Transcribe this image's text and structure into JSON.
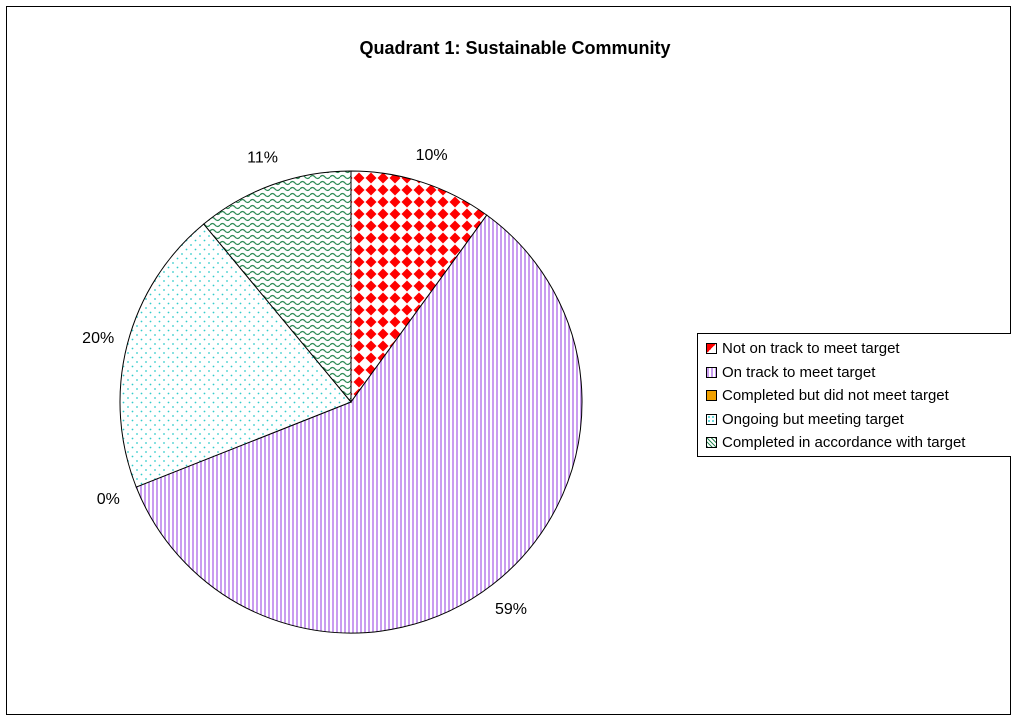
{
  "chart_data": {
    "type": "pie",
    "title": "Quadrant 1: Sustainable Community",
    "start_angle_deg": 0,
    "direction": "clockwise",
    "slices": [
      {
        "label": "Not on track to meet target",
        "value": 10,
        "percent_label": "10%",
        "pattern": "red-diamond-check",
        "color": "#ff0000"
      },
      {
        "label": "On track to meet target",
        "value": 59,
        "percent_label": "59%",
        "pattern": "violet-vertical-lines",
        "color": "#c99cf0"
      },
      {
        "label": "Completed but did not meet target",
        "value": 0,
        "percent_label": "0%",
        "pattern": "orange-solid",
        "color": "#f0a000"
      },
      {
        "label": "Ongoing but meeting target",
        "value": 20,
        "percent_label": "20%",
        "pattern": "cyan-dots",
        "color": "#33cccc"
      },
      {
        "label": "Completed in accordance with target",
        "value": 11,
        "percent_label": "11%",
        "pattern": "green-waves",
        "color": "#2e8b57"
      }
    ],
    "legend_position": "right"
  }
}
